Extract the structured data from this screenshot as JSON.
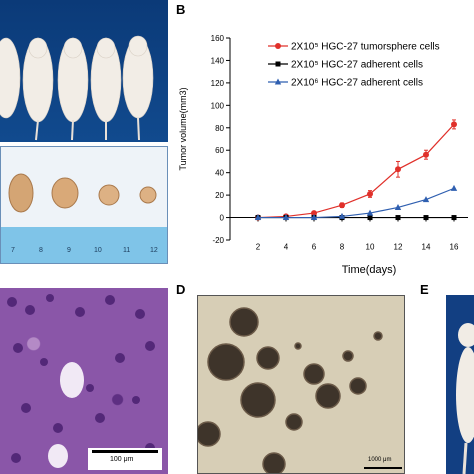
{
  "panels": {
    "B": "B",
    "D": "D",
    "E": "E"
  },
  "scalebars": {
    "C": "100 μm",
    "D": "1000 μm"
  },
  "ruler_ticks": [
    "7",
    "8",
    "9",
    "10",
    "11",
    "12"
  ],
  "colors": {
    "tumorsphere": "#e0302a",
    "adherent_2e5": "#000000",
    "adherent_2e6": "#2f5fb0",
    "photo_bg_top": "#0e3d7a",
    "photo_bg_bottom": "#e9f0f7",
    "he_stain": "#7a3f94",
    "sphere_bg": "#d6cdb4"
  },
  "chart_data": {
    "type": "line",
    "ylabel": "Tumor volume(mm3)",
    "xlabel": "Time(days)",
    "x": [
      0,
      2,
      4,
      6,
      8,
      10,
      12,
      14,
      16
    ],
    "xticks": [
      2,
      4,
      6,
      8,
      10,
      12,
      14,
      16
    ],
    "yticks": [
      -20,
      0,
      20,
      40,
      60,
      80,
      100,
      120,
      140,
      160
    ],
    "ylim": [
      -20,
      160
    ],
    "xlim": [
      0,
      17
    ],
    "legend_position": "top-right",
    "series": [
      {
        "name": "2X10⁵ HGC-27 tumorsphere cells",
        "marker": "circle",
        "x": [
          2,
          4,
          6,
          8,
          10,
          12,
          14,
          16
        ],
        "values": [
          0,
          1,
          4,
          11,
          21,
          43,
          56,
          83
        ],
        "errors": [
          0,
          0.5,
          1,
          2,
          3,
          7,
          4,
          4
        ]
      },
      {
        "name": "2X10⁵ HGC-27 adherent cells",
        "marker": "square",
        "x": [
          2,
          4,
          6,
          8,
          10,
          12,
          14,
          16
        ],
        "values": [
          0,
          0,
          0,
          0,
          0,
          0,
          0,
          0
        ]
      },
      {
        "name": "2X10⁶ HGC-27 adherent cells",
        "marker": "triangle",
        "x": [
          2,
          4,
          6,
          8,
          10,
          12,
          14,
          16
        ],
        "values": [
          0,
          0,
          0,
          1,
          4,
          9,
          16,
          26
        ]
      }
    ]
  }
}
